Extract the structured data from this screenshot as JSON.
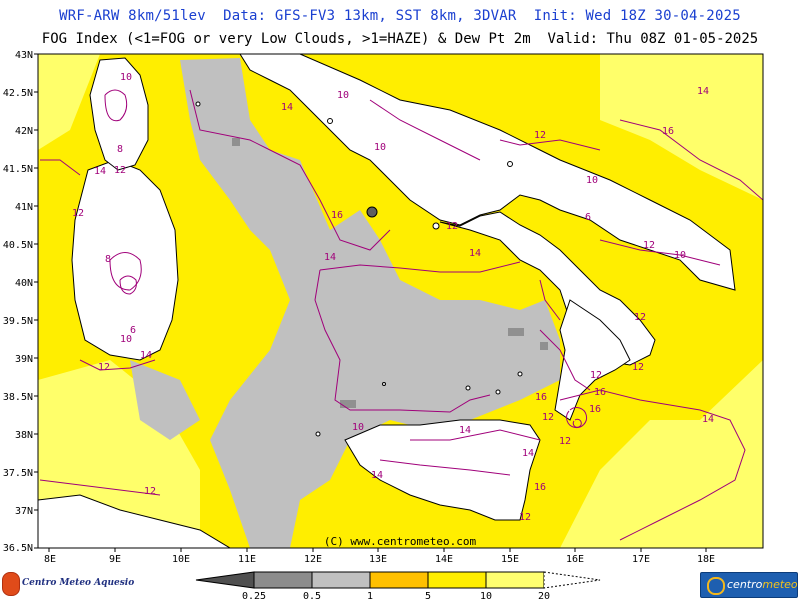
{
  "header": {
    "line1": "WRF-ARW 8km/51lev  Data: GFS-FV3 13km, SST 8km, 3DVAR  Init: Wed 18Z 30-04-2025",
    "line2": "FOG Index (<1=FOG or very Low Clouds, >1=HAZE) & Dew Pt 2m  Valid: Thu 08Z 01-05-2025"
  },
  "map": {
    "lat_labels": [
      "43N",
      "42.5N",
      "42N",
      "41.5N",
      "41N",
      "40.5N",
      "40N",
      "39.5N",
      "39N",
      "38.5N",
      "38N",
      "37.5N",
      "37N",
      "36.5N"
    ],
    "lon_labels": [
      "8E",
      "9E",
      "10E",
      "11E",
      "12E",
      "13E",
      "14E",
      "15E",
      "16E",
      "17E",
      "18E"
    ],
    "copyright": "(C) www.centrometeo.com",
    "contour_labels": [
      "10",
      "8",
      "12",
      "14",
      "16",
      "12",
      "10",
      "6",
      "12",
      "14",
      "16",
      "14",
      "12",
      "16",
      "14",
      "12",
      "10",
      "12",
      "14",
      "16",
      "14",
      "12",
      "10",
      "12",
      "6",
      "8",
      "10",
      "12",
      "14",
      "16",
      "14",
      "12",
      "10",
      "14",
      "12",
      "12",
      "14",
      "16",
      "10",
      "12"
    ],
    "colors": {
      "sea_gray": "#c0c0c0",
      "dark_gray": "#909090",
      "yellow": "#ffee00",
      "light_yellow": "#ffff6a",
      "contour": "#a0007a",
      "land": "#ffffff"
    }
  },
  "legend": {
    "ticks": [
      "0.25",
      "0.5",
      "1",
      "5",
      "10",
      "20"
    ],
    "colors": [
      "#505050",
      "#8c8c8c",
      "#c0c0c0",
      "#ffc000",
      "#ffee00",
      "#ffff70"
    ]
  },
  "logos": {
    "left": "Centro Meteo Aquesio",
    "right_a": "centro",
    "right_b": "meteo"
  }
}
